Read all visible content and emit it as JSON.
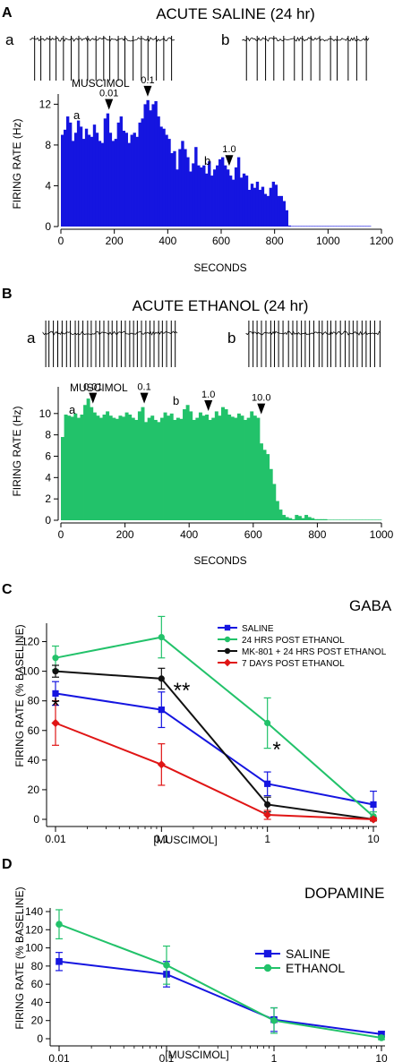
{
  "colors": {
    "saline": "#1515e0",
    "ethanol24": "#22c26a",
    "mk801": "#111111",
    "days7": "#e01515",
    "trace": "#000000"
  },
  "chart_data": [
    {
      "panel": "A",
      "type": "bar",
      "title": "ACUTE SALINE (24 hr)",
      "xlabel": "SECONDS",
      "ylabel": "FIRING RATE (Hz)",
      "xlim": [
        0,
        1200
      ],
      "ylim": [
        0,
        13
      ],
      "xticks": [
        0,
        200,
        400,
        600,
        800,
        1000,
        1200
      ],
      "yticks": [
        0,
        4,
        8,
        12
      ],
      "bin_width": 10,
      "color_key": "saline",
      "values": [
        9.0,
        9.5,
        10.8,
        10.2,
        8.4,
        9.2,
        10.4,
        9.8,
        8.6,
        9.6,
        9.0,
        8.8,
        10.0,
        9.2,
        8.4,
        8.2,
        10.6,
        11.1,
        9.2,
        8.4,
        8.6,
        10.2,
        10.8,
        9.4,
        9.2,
        8.2,
        9.0,
        9.2,
        8.8,
        10.2,
        10.6,
        12.0,
        12.4,
        11.4,
        12.0,
        12.3,
        10.8,
        9.8,
        9.6,
        9.0,
        8.6,
        7.2,
        7.4,
        5.6,
        7.6,
        8.4,
        7.6,
        6.8,
        5.4,
        6.2,
        7.8,
        6.0,
        5.8,
        6.0,
        5.2,
        6.4,
        5.0,
        5.6,
        6.0,
        6.6,
        6.8,
        6.0,
        5.6,
        5.0,
        4.6,
        5.8,
        6.8,
        4.8,
        5.2,
        5.0,
        3.6,
        4.2,
        3.8,
        4.4,
        3.6,
        3.9,
        3.2,
        3.0,
        3.8,
        4.4,
        4.1,
        3.0,
        3.0,
        2.5,
        1.6,
        0.1,
        0.05,
        0.05,
        0.05,
        0.05,
        0.05,
        0.05,
        0.05,
        0.05,
        0.05,
        0.05,
        0.05,
        0.05,
        0.05,
        0.05,
        0.05,
        0.05,
        0.05,
        0.05,
        0.05,
        0.05,
        0.05,
        0.05,
        0.05,
        0.05,
        0.05,
        0.05,
        0.05,
        0.05,
        0.05,
        0.05
      ],
      "annotation_header": "MUSCIMOL",
      "doses": [
        {
          "label": "0.01",
          "x": 180
        },
        {
          "label": "0.1",
          "x": 325
        },
        {
          "label": "1.0",
          "x": 630
        }
      ],
      "segment_labels": [
        {
          "label": "a",
          "x": 60,
          "y": 11.2
        },
        {
          "label": "b",
          "x": 545,
          "y": 6.8
        }
      ],
      "traces": [
        {
          "label": "a",
          "spikes": 19
        },
        {
          "label": "b",
          "spikes": 14
        }
      ]
    },
    {
      "panel": "B",
      "type": "bar",
      "title": "ACUTE ETHANOL (24 hr)",
      "xlabel": "SECONDS",
      "ylabel": "FIRING RATE (Hz)",
      "xlim": [
        0,
        1000
      ],
      "ylim": [
        0,
        12.5
      ],
      "xticks": [
        0,
        200,
        400,
        600,
        800,
        1000
      ],
      "yticks": [
        0,
        2,
        4,
        6,
        8,
        10
      ],
      "bin_width": 10,
      "color_key": "ethanol24",
      "values": [
        7.8,
        9.9,
        9.8,
        9.7,
        10.0,
        9.6,
        9.9,
        10.8,
        11.4,
        10.6,
        10.1,
        9.8,
        9.6,
        9.9,
        10.2,
        9.8,
        9.6,
        9.5,
        9.8,
        9.7,
        10.1,
        9.9,
        9.6,
        9.4,
        10.2,
        10.6,
        9.2,
        9.6,
        9.8,
        9.4,
        9.2,
        9.6,
        10.1,
        9.8,
        10.0,
        9.4,
        9.6,
        9.5,
        10.4,
        10.8,
        10.2,
        9.4,
        9.6,
        10.1,
        9.8,
        9.9,
        9.4,
        9.6,
        10.2,
        9.8,
        10.6,
        10.4,
        9.9,
        9.7,
        9.6,
        10.0,
        9.8,
        9.4,
        9.6,
        10.2,
        9.8,
        9.6,
        7.2,
        6.6,
        6.2,
        4.8,
        3.4,
        1.8,
        1.0,
        0.5,
        0.3,
        0.2,
        0.1,
        0.5,
        0.4,
        0.2,
        0.5,
        0.3,
        0.2,
        0.1,
        0.1,
        0.1,
        0.1,
        0.05,
        0.05,
        0.05,
        0.05,
        0.05,
        0.05,
        0.05,
        0.05,
        0.05,
        0.05,
        0.05,
        0.05,
        0.05,
        0.05,
        0.05,
        0.05,
        0.05
      ],
      "annotation_header": "MUSCIMOL",
      "doses": [
        {
          "label": "0.01",
          "x": 100
        },
        {
          "label": "0.1",
          "x": 260
        },
        {
          "label": "1.0",
          "x": 460
        },
        {
          "label": "10.0",
          "x": 625
        }
      ],
      "segment_labels": [
        {
          "label": "a",
          "x": 40,
          "y": 10.6
        },
        {
          "label": "b",
          "x": 360,
          "y": 11.0
        }
      ],
      "traces": [
        {
          "label": "a",
          "spikes": 32
        },
        {
          "label": "b",
          "spikes": 31
        }
      ]
    },
    {
      "panel": "C",
      "type": "line",
      "title": "GABA",
      "xlabel": "[MUSCIMOL]",
      "ylabel": "FIRING RATE (% BASELINE)",
      "xscale": "log",
      "xlim": [
        0.01,
        10
      ],
      "ylim": [
        0,
        130
      ],
      "xticks": [
        0.01,
        0.1,
        1,
        10
      ],
      "xtick_labels": [
        "0.01",
        "0.1",
        "1",
        "10"
      ],
      "yticks": [
        0,
        20,
        40,
        60,
        80,
        100,
        120
      ],
      "x": [
        0.01,
        0.1,
        1,
        10
      ],
      "legend": "top-right",
      "series": [
        {
          "name": "SALINE",
          "color_key": "saline",
          "marker": "square",
          "values": [
            85,
            74,
            24,
            10
          ],
          "errors": [
            8,
            12,
            8,
            9
          ]
        },
        {
          "name": "24 HRS POST ETHANOL",
          "color_key": "ethanol24",
          "marker": "circle",
          "values": [
            109,
            123,
            65,
            2
          ],
          "errors": [
            8,
            14,
            17,
            3
          ]
        },
        {
          "name": "MK-801 + 24 HRS POST ETHANOL",
          "color_key": "mk801",
          "marker": "circle",
          "values": [
            100,
            95,
            10,
            0
          ],
          "errors": [
            4,
            7,
            5,
            1
          ]
        },
        {
          "name": "7 DAYS POST ETHANOL",
          "color_key": "days7",
          "marker": "diamond",
          "values": [
            65,
            37,
            3,
            0
          ],
          "errors": [
            15,
            14,
            3,
            1
          ]
        }
      ],
      "significance": [
        {
          "x": 0.01,
          "label": "*"
        },
        {
          "x": 0.1,
          "label": "**"
        },
        {
          "x": 1,
          "label": "*"
        }
      ]
    },
    {
      "panel": "D",
      "type": "line",
      "title": "DOPAMINE",
      "xlabel": "[MUSCIMOL]",
      "ylabel": "FIRING RATE (% BASELINE)",
      "xscale": "log",
      "xlim": [
        0.01,
        10
      ],
      "ylim": [
        0,
        140
      ],
      "xticks": [
        0.01,
        0.1,
        1,
        10
      ],
      "xtick_labels": [
        "0.01",
        "0.1",
        "1",
        "10"
      ],
      "yticks": [
        0,
        20,
        40,
        60,
        80,
        100,
        120,
        140
      ],
      "x": [
        0.01,
        0.1,
        1,
        10
      ],
      "legend": "center-right",
      "series": [
        {
          "name": "SALINE",
          "color_key": "saline",
          "marker": "square",
          "values": [
            85,
            71,
            21,
            5
          ],
          "errors": [
            10,
            14,
            13,
            3
          ]
        },
        {
          "name": "ETHANOL",
          "color_key": "ethanol24",
          "marker": "circle",
          "values": [
            126,
            81,
            20,
            1
          ],
          "errors": [
            16,
            21,
            14,
            2
          ]
        }
      ]
    }
  ]
}
